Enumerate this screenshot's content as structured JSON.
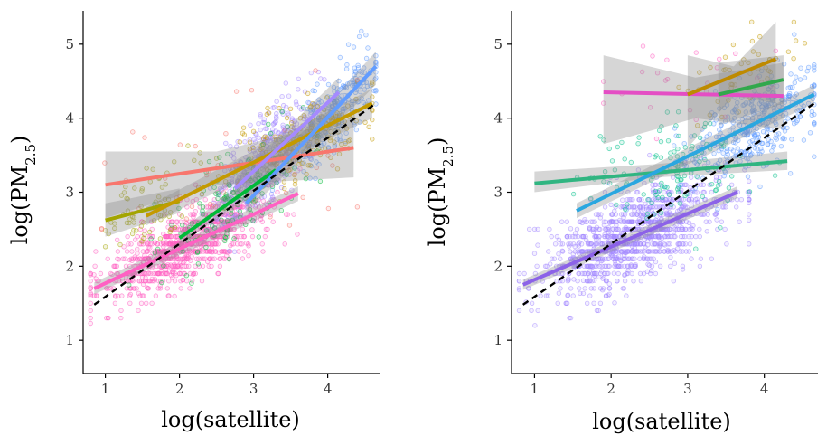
{
  "chart_data": [
    {
      "type": "scatter",
      "panel": "left",
      "xlabel": "log(satellite)",
      "ylabel": "log(PM2.5)",
      "xlim": [
        0.7,
        4.7
      ],
      "ylim": [
        0.55,
        5.45
      ],
      "x_ticks": [
        1,
        2,
        3,
        4
      ],
      "y_ticks": [
        1,
        2,
        3,
        4,
        5
      ],
      "legend": "none",
      "grid": false,
      "reference_line": {
        "style": "dashed",
        "color": "#000000",
        "x": [
          0.85,
          4.65
        ],
        "y": [
          1.48,
          4.2
        ]
      },
      "fits": [
        {
          "color": "#F8766D",
          "x": [
            1.0,
            4.35
          ],
          "y": [
            3.1,
            3.6
          ],
          "band": [
            [
              1.0,
              2.65,
              3.55
            ],
            [
              2.5,
              3.1,
              3.55
            ],
            [
              4.35,
              3.2,
              4.0
            ]
          ]
        },
        {
          "color": "#A3A500",
          "x": [
            1.0,
            2.0
          ],
          "y": [
            2.62,
            2.88
          ],
          "band": [
            [
              1.0,
              2.4,
              2.85
            ],
            [
              2.0,
              2.72,
              3.05
            ]
          ]
        },
        {
          "color": "#00BA38",
          "x": [
            2.0,
            3.3
          ],
          "y": [
            2.38,
            3.3
          ],
          "band": [
            [
              2.0,
              2.3,
              2.48
            ],
            [
              3.3,
              3.15,
              3.45
            ]
          ]
        },
        {
          "color": "#C49A00",
          "x": [
            1.55,
            4.6
          ],
          "y": [
            2.68,
            4.2
          ],
          "band": [
            [
              1.55,
              2.55,
              2.8
            ],
            [
              4.6,
              4.0,
              4.4
            ]
          ]
        },
        {
          "color": "#619CFF",
          "x": [
            2.9,
            4.65
          ],
          "y": [
            2.85,
            4.7
          ],
          "band": [
            [
              2.9,
              2.72,
              2.98
            ],
            [
              4.65,
              4.45,
              4.9
            ]
          ]
        },
        {
          "color": "#A58AFF",
          "x": [
            2.75,
            4.15
          ],
          "y": [
            3.05,
            4.35
          ],
          "band": [
            [
              2.75,
              2.92,
              3.18
            ],
            [
              4.15,
              4.15,
              4.55
            ]
          ]
        },
        {
          "color": "#FF61C3",
          "x": [
            0.85,
            3.6
          ],
          "y": [
            1.7,
            2.98
          ],
          "band": [
            [
              0.85,
              1.62,
              1.78
            ],
            [
              3.6,
              2.88,
              3.08
            ]
          ]
        }
      ],
      "scatter_groups": [
        {
          "color": "#FF61C3",
          "n": 900,
          "x_range": [
            0.8,
            3.8
          ],
          "x_mean": 2.1,
          "x_sd": 0.55,
          "fit_ref": [
            [
              0.85,
              1.7
            ],
            [
              3.6,
              2.98
            ]
          ],
          "y_sd": 0.25,
          "y_step": 0.1
        },
        {
          "color": "#A58AFF",
          "n": 420,
          "x_range": [
            2.3,
            4.3
          ],
          "x_mean": 3.1,
          "x_sd": 0.35,
          "fit_ref": [
            [
              2.75,
              3.05
            ],
            [
              4.15,
              4.35
            ]
          ],
          "y_sd": 0.28,
          "y_step": 0
        },
        {
          "color": "#619CFF",
          "n": 260,
          "x_range": [
            3.0,
            4.65
          ],
          "x_mean": 4.1,
          "x_sd": 0.3,
          "fit_ref": [
            [
              2.9,
              2.85
            ],
            [
              4.65,
              4.7
            ]
          ],
          "y_sd": 0.25,
          "y_step": 0
        },
        {
          "color": "#C49A00",
          "n": 170,
          "x_range": [
            1.5,
            4.6
          ],
          "x_mean": 3.7,
          "x_sd": 0.5,
          "fit_ref": [
            [
              1.55,
              2.68
            ],
            [
              4.6,
              4.2
            ]
          ],
          "y_sd": 0.25,
          "y_step": 0
        },
        {
          "color": "#00BA38",
          "n": 140,
          "x_range": [
            1.1,
            3.9
          ],
          "x_mean": 2.7,
          "x_sd": 0.55,
          "fit_ref": [
            [
              2.0,
              2.38
            ],
            [
              3.3,
              3.3
            ]
          ],
          "y_sd": 0.3,
          "y_step": 0
        },
        {
          "color": "#A3A500",
          "n": 70,
          "x_range": [
            1.0,
            2.5
          ],
          "x_mean": 1.6,
          "x_sd": 0.35,
          "fit_ref": [
            [
              1.0,
              2.62
            ],
            [
              2.0,
              2.88
            ]
          ],
          "y_sd": 0.3,
          "y_step": 0
        },
        {
          "color": "#F8766D",
          "n": 45,
          "x_range": [
            0.95,
            4.4
          ],
          "x_mean": 2.6,
          "x_sd": 1.0,
          "fit_ref": [
            [
              1.0,
              3.1
            ],
            [
              4.35,
              3.6
            ]
          ],
          "y_sd": 0.45,
          "y_step": 0
        }
      ]
    },
    {
      "type": "scatter",
      "panel": "right",
      "xlabel": "log(satellite)",
      "ylabel": "log(PM2.5)",
      "xlim": [
        0.7,
        4.7
      ],
      "ylim": [
        0.55,
        5.45
      ],
      "x_ticks": [
        1,
        2,
        3,
        4
      ],
      "y_ticks": [
        1,
        2,
        3,
        4,
        5
      ],
      "legend": "none",
      "grid": false,
      "reference_line": {
        "style": "dashed",
        "color": "#000000",
        "x": [
          0.85,
          4.65
        ],
        "y": [
          1.48,
          4.2
        ]
      },
      "fits": [
        {
          "color": "#E44EC4",
          "x": [
            1.9,
            4.25
          ],
          "y": [
            4.35,
            4.3
          ],
          "band": [
            [
              1.9,
              3.65,
              4.85
            ],
            [
              3.1,
              4.0,
              4.55
            ],
            [
              4.25,
              3.85,
              4.75
            ]
          ]
        },
        {
          "color": "#BE8A00",
          "x": [
            3.0,
            4.15
          ],
          "y": [
            4.32,
            4.8
          ],
          "band": [
            [
              3.0,
              3.6,
              4.85
            ],
            [
              3.6,
              4.3,
              4.7
            ],
            [
              4.15,
              4.2,
              5.3
            ]
          ]
        },
        {
          "color": "#31A84C",
          "x": [
            3.4,
            4.25
          ],
          "y": [
            4.32,
            4.52
          ],
          "band": [
            [
              3.4,
              3.9,
              4.75
            ],
            [
              4.25,
              4.2,
              4.85
            ]
          ]
        },
        {
          "color": "#30B581",
          "x": [
            1.0,
            4.3
          ],
          "y": [
            3.12,
            3.42
          ],
          "band": [
            [
              1.0,
              3.0,
              3.28
            ],
            [
              2.6,
              3.2,
              3.38
            ],
            [
              4.3,
              3.3,
              3.55
            ]
          ]
        },
        {
          "color": "#2AA7E0",
          "x": [
            1.55,
            4.65
          ],
          "y": [
            2.75,
            4.32
          ],
          "band": [
            [
              1.55,
              2.65,
              2.85
            ],
            [
              4.65,
              4.2,
              4.45
            ]
          ]
        },
        {
          "color": "#8C62E8",
          "x": [
            0.85,
            3.65
          ],
          "y": [
            1.75,
            3.0
          ],
          "band": [
            [
              0.85,
              1.68,
              1.82
            ],
            [
              3.65,
              2.92,
              3.08
            ]
          ]
        }
      ],
      "scatter_groups": [
        {
          "color": "#A58AFF",
          "n": 1100,
          "x_range": [
            0.8,
            3.8
          ],
          "x_mean": 2.3,
          "x_sd": 0.6,
          "fit_ref": [
            [
              0.85,
              1.75
            ],
            [
              3.65,
              3.0
            ]
          ],
          "y_sd": 0.3,
          "y_step": 0.1
        },
        {
          "color": "#619CFF",
          "n": 380,
          "x_range": [
            1.8,
            4.65
          ],
          "x_mean": 3.9,
          "x_sd": 0.45,
          "fit_ref": [
            [
              1.55,
              2.75
            ],
            [
              4.65,
              4.32
            ]
          ],
          "y_sd": 0.3,
          "y_step": 0
        },
        {
          "color": "#00C08B",
          "n": 130,
          "x_range": [
            1.0,
            4.2
          ],
          "x_mean": 2.9,
          "x_sd": 0.6,
          "fit_ref": [
            [
              1.0,
              3.12
            ],
            [
              4.3,
              3.42
            ]
          ],
          "y_sd": 0.35,
          "y_step": 0
        },
        {
          "color": "#C49A00",
          "n": 45,
          "x_range": [
            2.8,
            4.6
          ],
          "x_mean": 3.7,
          "x_sd": 0.4,
          "fit_ref": [
            [
              3.0,
              4.32
            ],
            [
              4.15,
              4.8
            ]
          ],
          "y_sd": 0.3,
          "y_step": 0
        },
        {
          "color": "#FF61C3",
          "n": 25,
          "x_range": [
            1.9,
            4.3
          ],
          "x_mean": 3.0,
          "x_sd": 0.6,
          "fit_ref": [
            [
              1.9,
              4.35
            ],
            [
              4.25,
              4.3
            ]
          ],
          "y_sd": 0.35,
          "y_step": 0
        }
      ]
    }
  ]
}
